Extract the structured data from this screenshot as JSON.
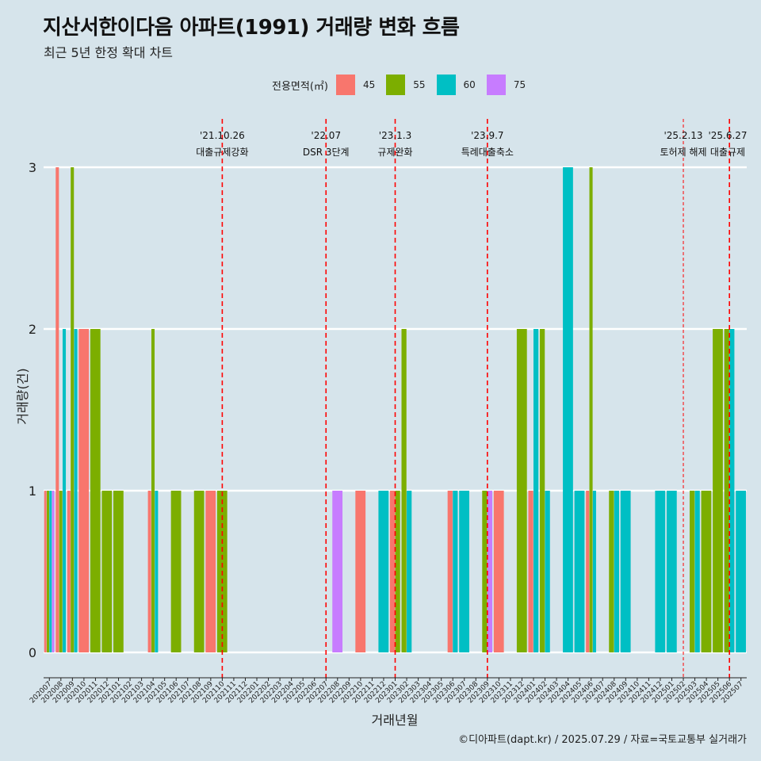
{
  "title": "지산서한이다음 아파트(1991) 거래량 변화 흐름",
  "subtitle": "최근 5년 한정 확대 차트",
  "caption": "©디아파트(dapt.kr) / 2025.07.29 / 자료=국토교통부 실거래가",
  "legend": {
    "title": "전용면적(㎡)",
    "items": [
      {
        "label": "45",
        "color": "#F8766D"
      },
      {
        "label": "55",
        "color": "#7CAE00"
      },
      {
        "label": "60",
        "color": "#00BFC4"
      },
      {
        "label": "75",
        "color": "#C77CFF"
      }
    ]
  },
  "chart_data": {
    "type": "bar",
    "xlabel": "거래년월",
    "ylabel": "거래량(건)",
    "ylim": [
      0,
      3
    ],
    "yticks": [
      0,
      1,
      2,
      3
    ],
    "grid": true,
    "legend_position": "top",
    "categories": [
      "202007",
      "202008",
      "202009",
      "202010",
      "202011",
      "202012",
      "202101",
      "202102",
      "202103",
      "202104",
      "202105",
      "202106",
      "202107",
      "202108",
      "202109",
      "202110",
      "202111",
      "202112",
      "202201",
      "202202",
      "202203",
      "202204",
      "202205",
      "202206",
      "202207",
      "202208",
      "202209",
      "202210",
      "202211",
      "202212",
      "202301",
      "202302",
      "202303",
      "202304",
      "202305",
      "202306",
      "202307",
      "202308",
      "202309",
      "202310",
      "202311",
      "202312",
      "202401",
      "202402",
      "202403",
      "202404",
      "202405",
      "202406",
      "202407",
      "202408",
      "202409",
      "202410",
      "202411",
      "202412",
      "202501",
      "202502",
      "202503",
      "202504",
      "202505",
      "202506",
      "202507"
    ],
    "series": [
      {
        "name": "45",
        "color": "#F8766D",
        "values": [
          1,
          3,
          1,
          2,
          0,
          0,
          0,
          0,
          0,
          1,
          0,
          0,
          0,
          0,
          1,
          0,
          0,
          0,
          0,
          0,
          0,
          0,
          0,
          0,
          0,
          0,
          0,
          1,
          0,
          0,
          1,
          0,
          0,
          0,
          0,
          1,
          0,
          0,
          0,
          1,
          0,
          0,
          1,
          0,
          0,
          0,
          0,
          1,
          0,
          0,
          0,
          0,
          0,
          0,
          0,
          0,
          0,
          0,
          0,
          0,
          0
        ]
      },
      {
        "name": "55",
        "color": "#7CAE00",
        "values": [
          1,
          1,
          3,
          0,
          2,
          1,
          1,
          0,
          0,
          2,
          0,
          1,
          0,
          1,
          0,
          1,
          0,
          0,
          0,
          0,
          0,
          0,
          0,
          0,
          0,
          0,
          0,
          0,
          0,
          0,
          1,
          2,
          0,
          0,
          0,
          0,
          0,
          0,
          1,
          0,
          0,
          2,
          0,
          2,
          0,
          0,
          0,
          3,
          0,
          1,
          0,
          0,
          0,
          0,
          0,
          0,
          1,
          1,
          2,
          2,
          0
        ]
      },
      {
        "name": "60",
        "color": "#00BFC4",
        "values": [
          1,
          2,
          2,
          0,
          0,
          0,
          0,
          0,
          0,
          1,
          0,
          0,
          0,
          0,
          0,
          0,
          0,
          0,
          0,
          0,
          0,
          0,
          0,
          0,
          0,
          0,
          0,
          0,
          0,
          1,
          0,
          1,
          0,
          0,
          0,
          1,
          1,
          0,
          0,
          0,
          0,
          0,
          2,
          1,
          0,
          3,
          1,
          1,
          0,
          1,
          1,
          0,
          0,
          1,
          1,
          0,
          1,
          0,
          0,
          2,
          1
        ]
      },
      {
        "name": "75",
        "color": "#C77CFF",
        "values": [
          1,
          0,
          0,
          0,
          0,
          0,
          0,
          0,
          0,
          0,
          0,
          0,
          0,
          0,
          0,
          0,
          0,
          0,
          0,
          0,
          0,
          0,
          0,
          0,
          0,
          1,
          0,
          0,
          0,
          0,
          0,
          0,
          0,
          0,
          0,
          0,
          0,
          0,
          1,
          0,
          0,
          0,
          0,
          0,
          0,
          0,
          0,
          0,
          0,
          0,
          0,
          0,
          0,
          0,
          0,
          0,
          0,
          0,
          0,
          0,
          0
        ]
      }
    ],
    "annotations": [
      {
        "x": "202110",
        "date": "'21.10.26",
        "text": "대출규제강화"
      },
      {
        "x": "202207",
        "date": "'22.07",
        "text": "DSR 3단계"
      },
      {
        "x": "202301",
        "date": "'23.1.3",
        "text": "규제완화"
      },
      {
        "x": "202309",
        "date": "'23.9.7",
        "text": "특례대출축소"
      },
      {
        "x": "202502",
        "date": "'25.2.13",
        "text": "토허제 해제"
      },
      {
        "x": "202506",
        "date": "'25.6.27",
        "text": "대출규제"
      }
    ]
  }
}
